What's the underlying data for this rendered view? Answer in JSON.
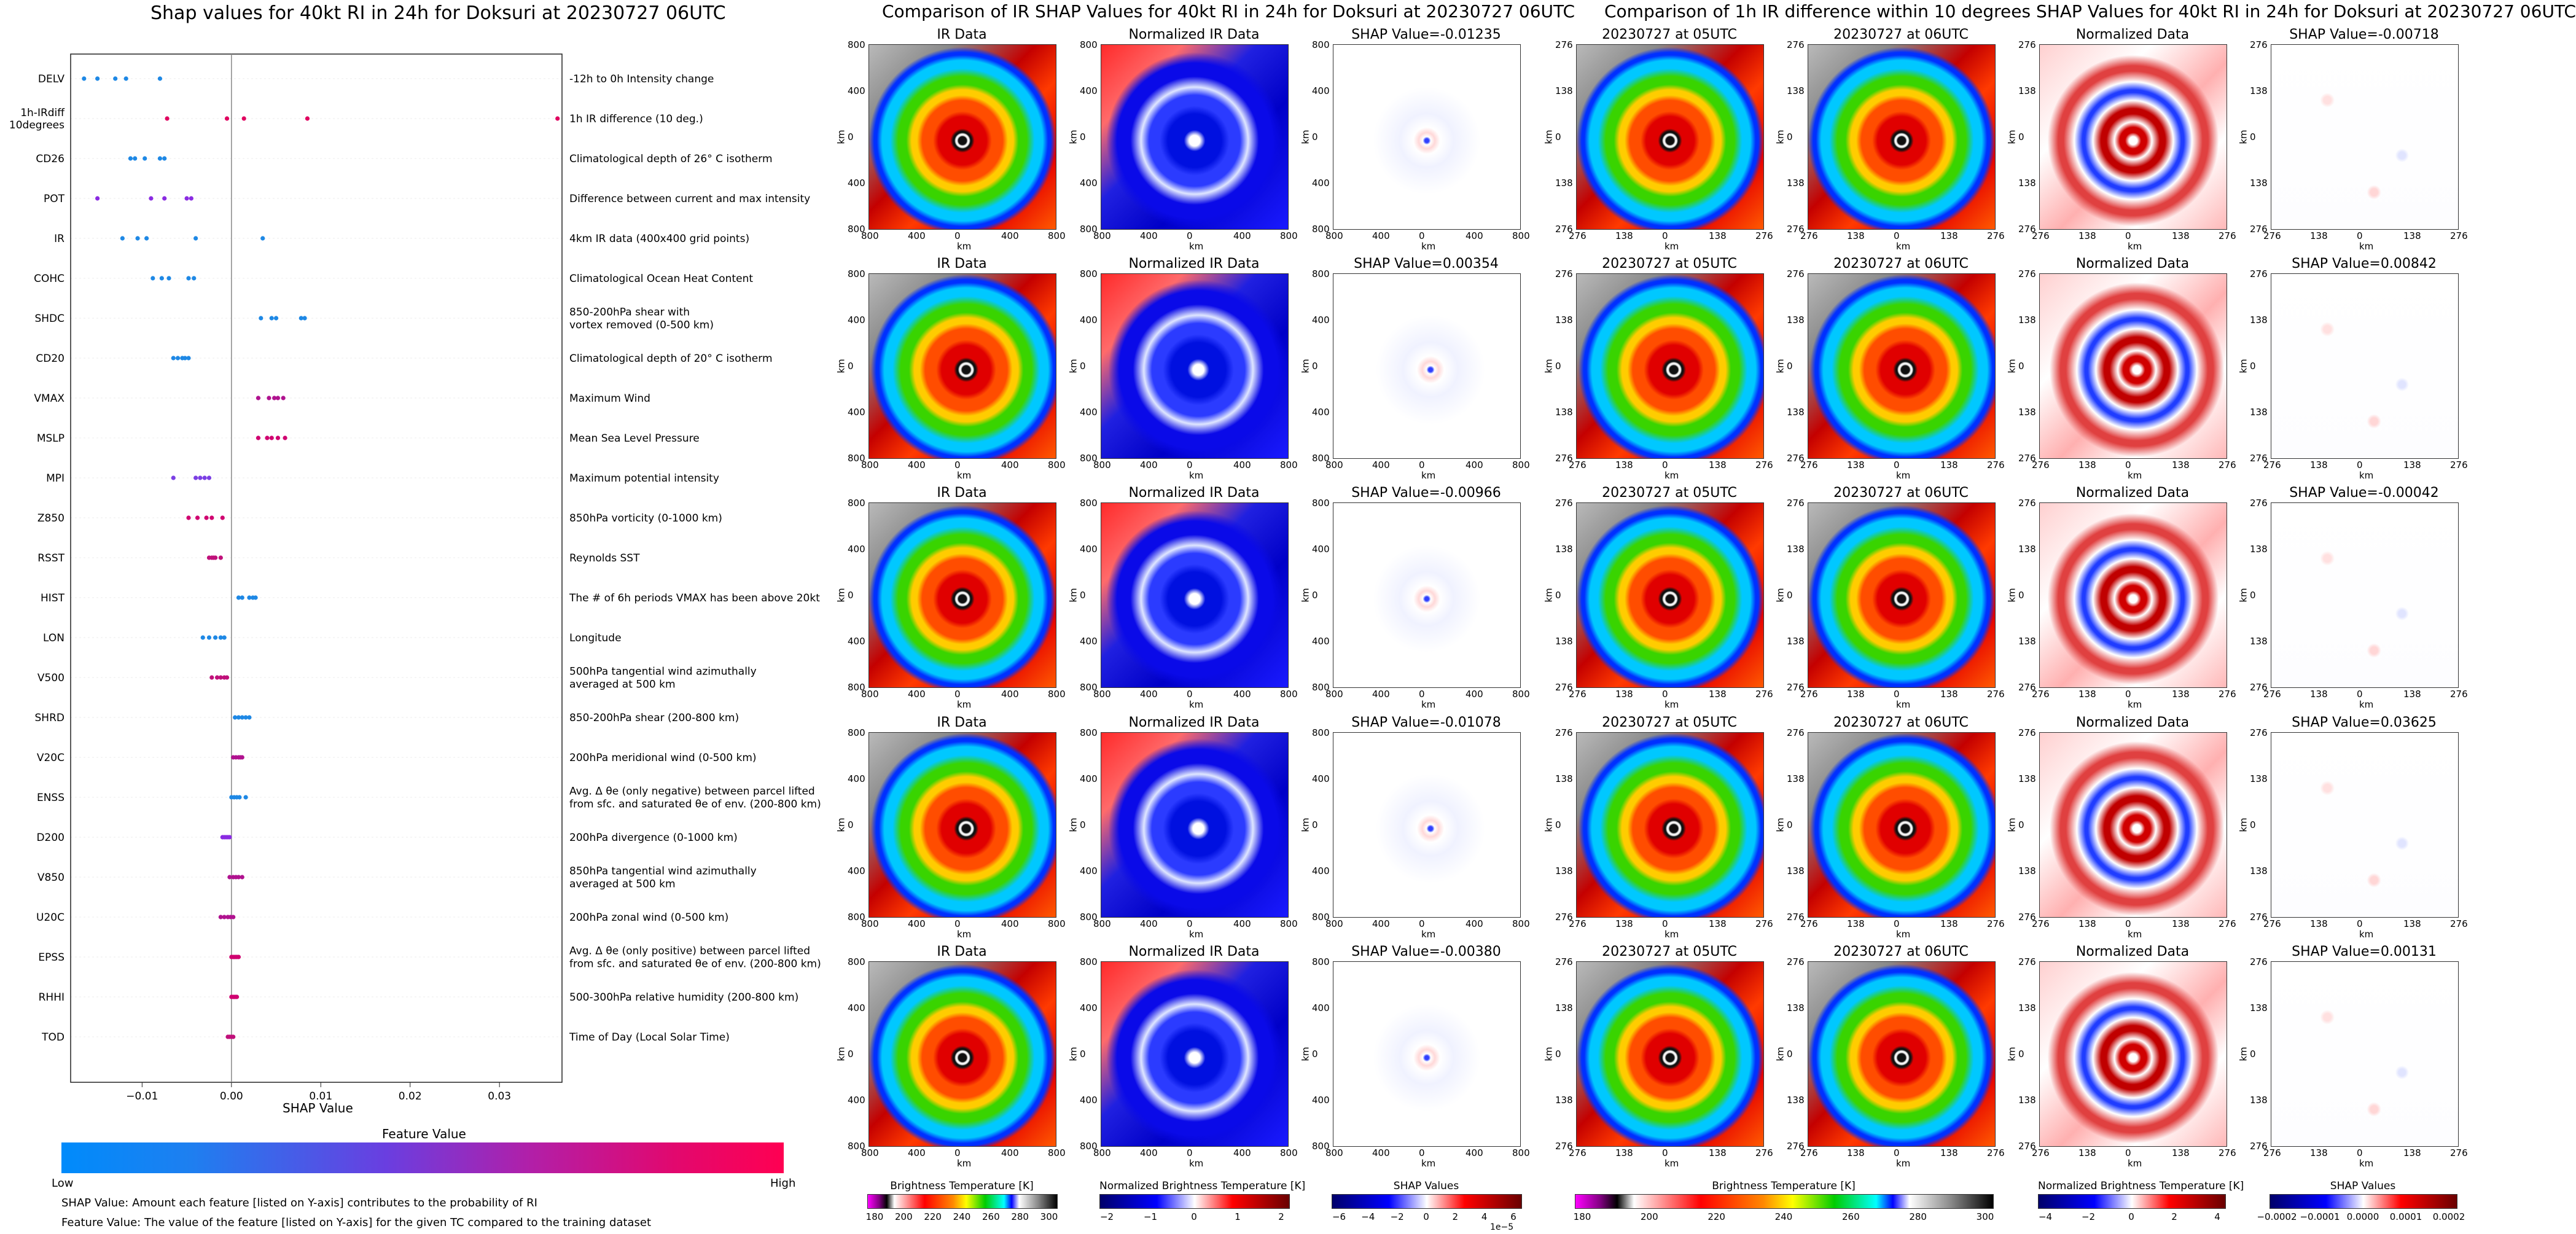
{
  "left_panel": {
    "title": "Shap values for 40kt RI in 24h for Doksuri at 20230727 06UTC",
    "xlabel": "SHAP Value",
    "xticks": [
      "−0.01",
      "0.00",
      "0.01",
      "0.02",
      "0.03"
    ],
    "colorbar_title": "Feature Value",
    "colorbar_low": "Low",
    "colorbar_high": "High",
    "footnote_1": "SHAP Value: Amount each feature [listed on Y-axis] contributes to the probability of RI",
    "footnote_2": "Feature Value: The value of the feature [listed on Y-axis] for the given TC compared to the training dataset"
  },
  "chart_data": [
    {
      "type": "scatter",
      "title": "Shap values for 40kt RI in 24h for Doksuri at 20230727 06UTC",
      "xlabel": "SHAP Value",
      "xlim": [
        -0.018,
        0.037
      ],
      "grid": false,
      "series": [
        {
          "feature": "DELV",
          "label": "-12h to 0h Intensity change",
          "color": "#1e88e5",
          "values": [
            -0.0165,
            -0.015,
            -0.013,
            -0.0118,
            -0.008
          ]
        },
        {
          "feature": "1h-IRdiff\n10degrees",
          "label": "1h IR difference (10 deg.)",
          "color": "#e0005f",
          "values": [
            -0.0072,
            -0.0005,
            0.0014,
            0.0085,
            0.0365
          ]
        },
        {
          "feature": "CD26",
          "label": "Climatological depth of 26° C isotherm",
          "color": "#1e88e5",
          "values": [
            -0.0113,
            -0.0108,
            -0.0097,
            -0.008,
            -0.0075
          ]
        },
        {
          "feature": "POT",
          "label": "Difference between current and max intensity",
          "color": "#8a2be2",
          "values": [
            -0.015,
            -0.009,
            -0.0075,
            -0.005,
            -0.0045
          ]
        },
        {
          "feature": "IR",
          "label": "4km IR data (400x400 grid points)",
          "color": "#1e88e5",
          "values": [
            -0.0122,
            -0.0105,
            -0.0095,
            -0.004,
            0.0035
          ]
        },
        {
          "feature": "COHC",
          "label": "Climatological Ocean Heat Content",
          "color": "#1e88e5",
          "values": [
            -0.0088,
            -0.0078,
            -0.007,
            -0.0048,
            -0.0042
          ]
        },
        {
          "feature": "SHDC",
          "label": "850-200hPa shear with\nvortex removed (0-500 km)",
          "color": "#1e88e5",
          "values": [
            0.0033,
            0.0045,
            0.005,
            0.0078,
            0.0082
          ]
        },
        {
          "feature": "CD20",
          "label": "Climatological depth of 20° C isotherm",
          "color": "#1e88e5",
          "values": [
            -0.0065,
            -0.006,
            -0.0055,
            -0.0052,
            -0.0048
          ]
        },
        {
          "feature": "VMAX",
          "label": "Maximum Wind",
          "color": "#b0128f",
          "values": [
            0.003,
            0.0042,
            0.0048,
            0.0052,
            0.0058
          ]
        },
        {
          "feature": "MSLP",
          "label": "Mean Sea Level Pressure",
          "color": "#d00070",
          "values": [
            0.003,
            0.004,
            0.0045,
            0.0052,
            0.006
          ]
        },
        {
          "feature": "MPI",
          "label": "Maximum potential intensity",
          "color": "#7b3fe4",
          "values": [
            -0.0065,
            -0.004,
            -0.0035,
            -0.003,
            -0.0025
          ]
        },
        {
          "feature": "Z850",
          "label": "850hPa vorticity (0-1000 km)",
          "color": "#d00070",
          "values": [
            -0.0048,
            -0.0038,
            -0.0028,
            -0.0022,
            -0.001
          ]
        },
        {
          "feature": "RSST",
          "label": "Reynolds SST",
          "color": "#c0107a",
          "values": [
            -0.0025,
            -0.0022,
            -0.002,
            -0.0018,
            -0.0012
          ]
        },
        {
          "feature": "HIST",
          "label": "The # of 6h periods VMAX has been above 20kt",
          "color": "#1e88e5",
          "values": [
            0.0008,
            0.0012,
            0.002,
            0.0024,
            0.0027
          ]
        },
        {
          "feature": "LON",
          "label": "Longitude",
          "color": "#1e88e5",
          "values": [
            -0.0032,
            -0.0025,
            -0.0018,
            -0.0012,
            -0.0008
          ]
        },
        {
          "feature": "V500",
          "label": "500hPa tangential wind azimuthally\naveraged at 500 km",
          "color": "#c0107a",
          "values": [
            -0.0022,
            -0.0016,
            -0.0012,
            -0.0008,
            -0.0005
          ]
        },
        {
          "feature": "SHRD",
          "label": "850-200hPa shear (200-800 km)",
          "color": "#1e88e5",
          "values": [
            0.0004,
            0.0008,
            0.0012,
            0.0016,
            0.002
          ]
        },
        {
          "feature": "V20C",
          "label": "200hPa meridional wind (0-500 km)",
          "color": "#b0128f",
          "values": [
            0.0002,
            0.0005,
            0.0008,
            0.001,
            0.0012
          ]
        },
        {
          "feature": "ENSS",
          "label": "Avg. Δ θe (only negative) between parcel lifted\nfrom sfc. and saturated θe of env. (200-800 km)",
          "color": "#1e88e5",
          "values": [
            0.0,
            0.0003,
            0.0006,
            0.0009,
            0.0016
          ]
        },
        {
          "feature": "D200",
          "label": "200hPa divergence (0-1000 km)",
          "color": "#8a2be2",
          "values": [
            -0.001,
            -0.0008,
            -0.0006,
            -0.0004,
            -0.0002
          ]
        },
        {
          "feature": "V850",
          "label": "850hPa tangential wind azimuthally\naveraged at 500 km",
          "color": "#b0128f",
          "values": [
            -0.0002,
            0.0002,
            0.0005,
            0.0008,
            0.0012
          ]
        },
        {
          "feature": "U20C",
          "label": "200hPa zonal wind (0-500 km)",
          "color": "#b0128f",
          "values": [
            -0.0012,
            -0.0008,
            -0.0004,
            -0.0001,
            0.0002
          ]
        },
        {
          "feature": "EPSS",
          "label": "Avg. Δ θe (only positive) between parcel lifted\nfrom sfc. and saturated θe of env. (200-800 km)",
          "color": "#d00070",
          "values": [
            0.0,
            0.0002,
            0.0004,
            0.0006,
            0.0008
          ]
        },
        {
          "feature": "RHHI",
          "label": "500-300hPa relative humidity (200-800 km)",
          "color": "#d00070",
          "values": [
            0.0,
            0.0002,
            0.0004,
            0.0006
          ]
        },
        {
          "feature": "TOD",
          "label": "Time of Day (Local Solar Time)",
          "color": "#c0107a",
          "values": [
            -0.0004,
            -0.0002,
            0.0,
            0.0002
          ]
        }
      ]
    },
    {
      "type": "heatmap",
      "title": "Comparison of IR SHAP Values for 40kt RI in 24h for Doksuri at 20230727 06UTC",
      "columns": [
        "IR Data",
        "Normalized IR Data",
        "SHAP Value"
      ],
      "shap_values": [
        "-0.01235",
        "0.00354",
        "-0.00966",
        "-0.01078",
        "-0.00380"
      ],
      "xlabel": "km",
      "ylabel": "km",
      "ticks": [
        "800",
        "400",
        "0",
        "400",
        "800"
      ]
    },
    {
      "type": "heatmap",
      "title": "Comparison of 1h IR difference within 10 degrees SHAP Values for 40kt RI in 24h for Doksuri at 20230727 06UTC",
      "columns": [
        "20230727 at 05UTC",
        "20230727 at 06UTC",
        "Normalized Data",
        "SHAP Value"
      ],
      "shap_values": [
        "-0.00718",
        "0.00842",
        "-0.00042",
        "0.03625",
        "0.00131"
      ],
      "xlabel": "km",
      "ylabel": "km",
      "ticks": [
        "276",
        "138",
        "0",
        "138",
        "276"
      ]
    }
  ],
  "mid_panel": {
    "title": "Comparison of IR SHAP Values for 40kt RI in 24h for Doksuri at 20230727 06UTC",
    "col_ir": "IR Data",
    "col_norm": "Normalized IR Data",
    "shap_prefix": "SHAP Value=",
    "shap_values": [
      "-0.01235",
      "0.00354",
      "-0.00966",
      "-0.01078",
      "-0.00380"
    ],
    "axis_unit": "km",
    "ticks": [
      "800",
      "400",
      "0",
      "400",
      "800"
    ],
    "cbar1_label": "Brightness Temperature [K]",
    "cbar1_ticks": [
      "180",
      "200",
      "220",
      "240",
      "260",
      "280",
      "300"
    ],
    "cbar2_label": "Normalized Brightness Temperature [K]",
    "cbar2_ticks": [
      "−2",
      "−1",
      "0",
      "1",
      "2"
    ],
    "cbar3_label": "SHAP Values",
    "cbar3_ticks": [
      "−6",
      "−4",
      "−2",
      "0",
      "2",
      "4",
      "6"
    ],
    "cbar3_exp": "1e−5"
  },
  "right_panel": {
    "title": "Comparison of 1h IR difference within 10 degrees SHAP Values for 40kt RI in 24h for Doksuri at 20230727 06UTC",
    "col_05": "20230727 at 05UTC",
    "col_06": "20230727 at 06UTC",
    "col_norm": "Normalized Data",
    "shap_prefix": "SHAP Value=",
    "shap_values": [
      "-0.00718",
      "0.00842",
      "-0.00042",
      "0.03625",
      "0.00131"
    ],
    "axis_unit": "km",
    "ticks": [
      "276",
      "138",
      "0",
      "138",
      "276"
    ],
    "cbar1_label": "Brightness Temperature [K]",
    "cbar1_ticks": [
      "180",
      "200",
      "220",
      "240",
      "260",
      "280",
      "300"
    ],
    "cbar2_label": "Normalized Brightness Temperature [K]",
    "cbar2_ticks": [
      "−4",
      "−2",
      "0",
      "2",
      "4"
    ],
    "cbar3_label": "SHAP Values",
    "cbar3_ticks": [
      "−0.0002",
      "−0.0001",
      "0.0000",
      "0.0001",
      "0.0002"
    ]
  },
  "colors": {
    "low": "#008bfb",
    "high": "#ff0052"
  }
}
